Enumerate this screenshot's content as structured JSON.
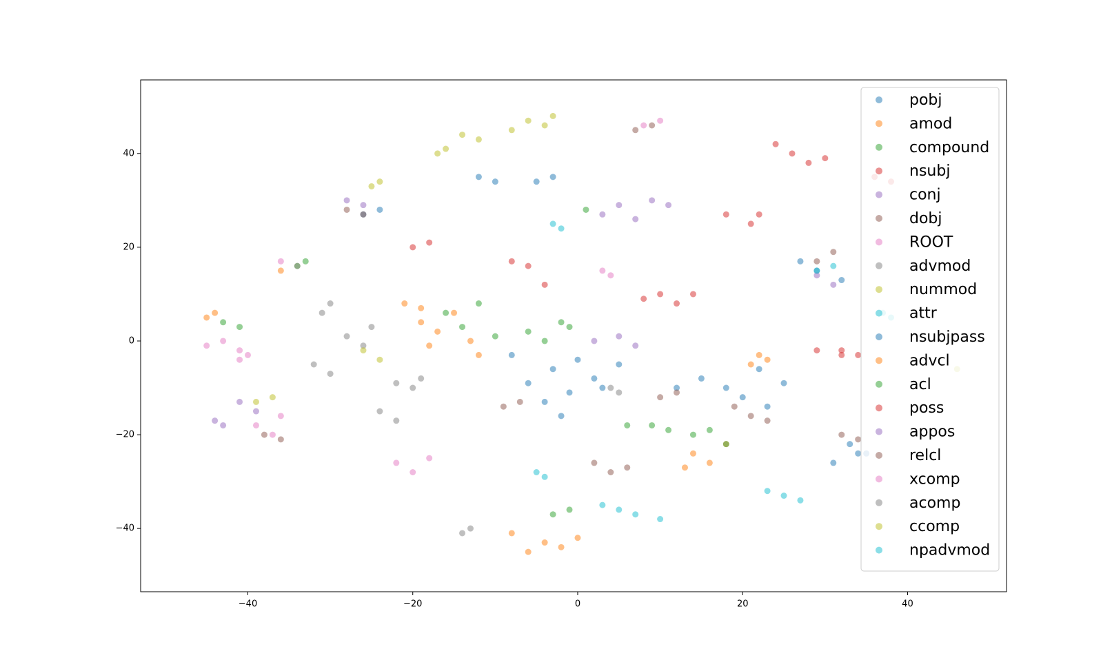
{
  "chart_data": {
    "type": "scatter",
    "xlim": [
      -53,
      52
    ],
    "ylim": [
      -53.5,
      55.7
    ],
    "xticks": [
      {
        "value": -40,
        "label": "−40"
      },
      {
        "value": -20,
        "label": "−20"
      },
      0,
      20,
      40
    ],
    "yticks": [
      {
        "value": -40,
        "label": "−40"
      },
      {
        "value": -20,
        "label": "−20"
      },
      0,
      20,
      40
    ],
    "legend": "upper right",
    "series": [
      {
        "name": "pobj",
        "color": "#1f77b4",
        "x": [
          -6,
          -3,
          -1,
          2,
          -4,
          0,
          3,
          20,
          23,
          25,
          18,
          29,
          32,
          27,
          34,
          31,
          -12,
          -10,
          12,
          15,
          -8,
          5,
          -2,
          22
        ],
        "values": [
          -9,
          -6,
          -11,
          -8,
          -13,
          -4,
          -10,
          -12,
          -14,
          -9,
          -10,
          15,
          13,
          17,
          -24,
          -26,
          35,
          34,
          -10,
          -8,
          -3,
          -5,
          -16,
          -6
        ]
      },
      {
        "name": "amod",
        "color": "#ff7f0e",
        "x": [
          -19,
          -17,
          -15,
          -13,
          -18,
          -4,
          -2,
          0,
          -6,
          14,
          16,
          18,
          13,
          -45,
          -44,
          -12,
          22,
          -8
        ],
        "values": [
          4,
          2,
          6,
          0,
          -1,
          -43,
          -44,
          -42,
          -45,
          -24,
          -26,
          -22,
          -27,
          5,
          6,
          -3,
          -3,
          -41
        ]
      },
      {
        "name": "compound",
        "color": "#2ca02c",
        "x": [
          -16,
          -14,
          -6,
          -4,
          -2,
          -12,
          14,
          16,
          18,
          -43,
          -41,
          -3,
          -1,
          1,
          -10,
          6
        ],
        "values": [
          6,
          3,
          2,
          0,
          4,
          8,
          -20,
          -19,
          -22,
          4,
          3,
          -37,
          -36,
          28,
          1,
          -18
        ]
      },
      {
        "name": "nsubj",
        "color": "#d62728",
        "x": [
          24,
          26,
          28,
          30,
          10,
          12,
          8,
          -8,
          -6,
          18,
          21,
          22,
          29,
          32,
          36,
          38,
          -4
        ],
        "values": [
          42,
          40,
          38,
          39,
          10,
          8,
          9,
          17,
          16,
          27,
          25,
          27,
          -2,
          -3,
          35,
          34,
          12
        ]
      },
      {
        "name": "conj",
        "color": "#9467bd",
        "x": [
          3,
          5,
          7,
          -28,
          -26,
          5,
          7,
          29,
          31,
          -39,
          -41,
          2
        ],
        "values": [
          27,
          29,
          26,
          30,
          29,
          1,
          -1,
          14,
          12,
          -15,
          -13,
          0
        ]
      },
      {
        "name": "dobj",
        "color": "#8c564b",
        "x": [
          2,
          4,
          6,
          -9,
          -7,
          19,
          21,
          10,
          12,
          29,
          31,
          7,
          9,
          -38,
          -36,
          23
        ],
        "values": [
          -26,
          -28,
          -27,
          -14,
          -13,
          -14,
          -16,
          -12,
          -11,
          17,
          19,
          45,
          46,
          -20,
          -21,
          -17
        ]
      },
      {
        "name": "ROOT",
        "color": "#e377c2",
        "x": [
          -22,
          -20,
          -18,
          -39,
          -37,
          -36,
          -45,
          -43,
          -41,
          8,
          10,
          -36,
          -34
        ],
        "values": [
          -26,
          -28,
          -25,
          -18,
          -20,
          -16,
          -1,
          0,
          -2,
          46,
          47,
          17,
          16
        ]
      },
      {
        "name": "advmod",
        "color": "#7f7f7f",
        "x": [
          -28,
          -26,
          -25,
          -22,
          -20,
          -19,
          -32,
          -30,
          -31,
          -30,
          -24,
          -22
        ],
        "values": [
          1,
          -1,
          3,
          -9,
          -10,
          -8,
          -5,
          -7,
          6,
          8,
          -15,
          -17
        ]
      },
      {
        "name": "nummod",
        "color": "#bcbd22",
        "x": [
          -6,
          -4,
          -3,
          -14,
          -12,
          -26,
          -24,
          -39,
          -37,
          46,
          -8
        ],
        "values": [
          47,
          46,
          48,
          44,
          43,
          -2,
          -4,
          -13,
          -12,
          -6,
          45
        ]
      },
      {
        "name": "attr",
        "color": "#17becf",
        "x": [
          3,
          5,
          7,
          23,
          25,
          27,
          29,
          31,
          -3,
          -2,
          10
        ],
        "values": [
          -35,
          -36,
          -37,
          -32,
          -33,
          -34,
          15,
          16,
          25,
          24,
          -38
        ]
      },
      {
        "name": "nsubjpass",
        "color": "#1f77b4",
        "x": [
          -5,
          -3,
          33,
          35,
          -26,
          -24
        ],
        "values": [
          34,
          35,
          -22,
          -24,
          27,
          28
        ]
      },
      {
        "name": "advcl",
        "color": "#ff7f0e",
        "x": [
          -21,
          -19,
          21,
          23,
          -36
        ],
        "values": [
          8,
          7,
          -5,
          -4,
          15
        ]
      },
      {
        "name": "acl",
        "color": "#2ca02c",
        "x": [
          -34,
          -33,
          9,
          11,
          -1
        ],
        "values": [
          16,
          17,
          -18,
          -19,
          3
        ]
      },
      {
        "name": "poss",
        "color": "#d62728",
        "x": [
          -20,
          -18,
          32,
          34,
          14
        ],
        "values": [
          20,
          21,
          -2,
          -3,
          10
        ]
      },
      {
        "name": "appos",
        "color": "#9467bd",
        "x": [
          9,
          11,
          -44,
          -43
        ],
        "values": [
          30,
          29,
          -17,
          -18
        ]
      },
      {
        "name": "relcl",
        "color": "#8c564b",
        "x": [
          -28,
          -26,
          32,
          34
        ],
        "values": [
          28,
          27,
          -20,
          -21
        ]
      },
      {
        "name": "xcomp",
        "color": "#e377c2",
        "x": [
          -40,
          -41,
          3,
          4
        ],
        "values": [
          -3,
          -4,
          15,
          14
        ]
      },
      {
        "name": "acomp",
        "color": "#7f7f7f",
        "x": [
          -14,
          -13,
          4,
          5
        ],
        "values": [
          -41,
          -40,
          -10,
          -11
        ]
      },
      {
        "name": "ccomp",
        "color": "#bcbd22",
        "x": [
          -17,
          -16,
          -25,
          -24
        ],
        "values": [
          40,
          41,
          33,
          34
        ]
      },
      {
        "name": "npadvmod",
        "color": "#17becf",
        "x": [
          -5,
          -4,
          38,
          37
        ],
        "values": [
          -28,
          -29,
          5,
          6
        ]
      }
    ]
  }
}
